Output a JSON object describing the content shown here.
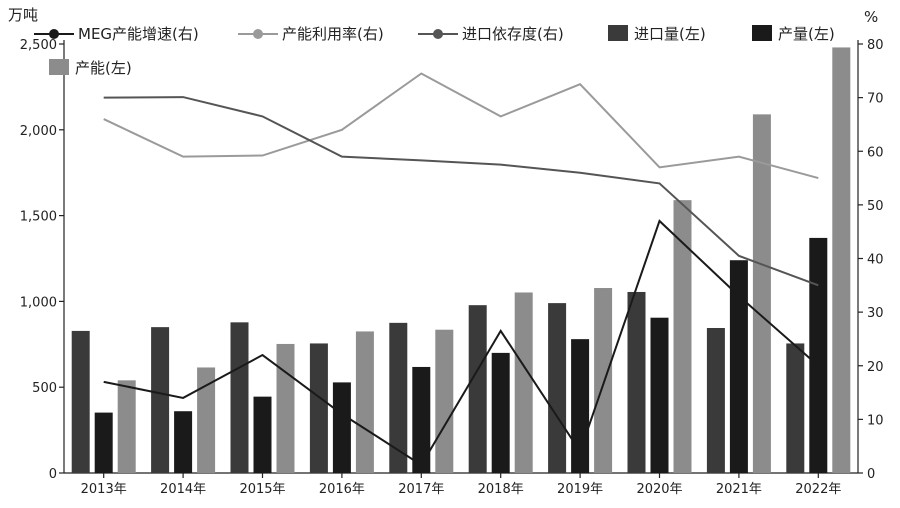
{
  "chart_data": {
    "type": "bar",
    "title": "",
    "left_unit": "万吨",
    "right_unit": "%",
    "categories": [
      "2013年",
      "2014年",
      "2015年",
      "2016年",
      "2017年",
      "2018年",
      "2019年",
      "2020年",
      "2021年",
      "2022年"
    ],
    "y_left": {
      "min": 0,
      "max": 2500,
      "ticks": [
        "0",
        "500",
        "1,000",
        "1,500",
        "2,000",
        "2,500"
      ]
    },
    "y_right": {
      "min": 0,
      "max": 80,
      "ticks": [
        "0",
        "10",
        "20",
        "30",
        "40",
        "50",
        "60",
        "70",
        "80"
      ]
    },
    "grid": false,
    "legend_position": "top",
    "bar_series": [
      {
        "name": "进口量(左)",
        "color": "#3a3a3a",
        "values": [
          828,
          850,
          878,
          755,
          875,
          978,
          990,
          1055,
          845,
          755
        ]
      },
      {
        "name": "产量(左)",
        "color": "#1a1a1a",
        "values": [
          352,
          360,
          445,
          528,
          618,
          700,
          780,
          905,
          1240,
          1370
        ]
      },
      {
        "name": "产能(左)",
        "color": "#8c8c8c",
        "values": [
          540,
          615,
          752,
          825,
          835,
          1052,
          1078,
          1590,
          2090,
          2480
        ]
      }
    ],
    "line_series": [
      {
        "name": "MEG产能增速(右)",
        "color": "#1a1a1a",
        "values": [
          17.0,
          14.0,
          22.0,
          11.0,
          1.5,
          26.5,
          4.0,
          47.0,
          33.0,
          20.0
        ]
      },
      {
        "name": "产能利用率(右)",
        "color": "#9a9a9a",
        "values": [
          66.0,
          59.0,
          59.2,
          64.0,
          74.5,
          66.5,
          72.5,
          57.0,
          59.0,
          55.0
        ]
      },
      {
        "name": "进口依存度(右)",
        "color": "#555555",
        "values": [
          70.0,
          70.1,
          66.5,
          59.0,
          58.3,
          57.5,
          56.0,
          54.0,
          40.5,
          35.0
        ]
      }
    ]
  }
}
